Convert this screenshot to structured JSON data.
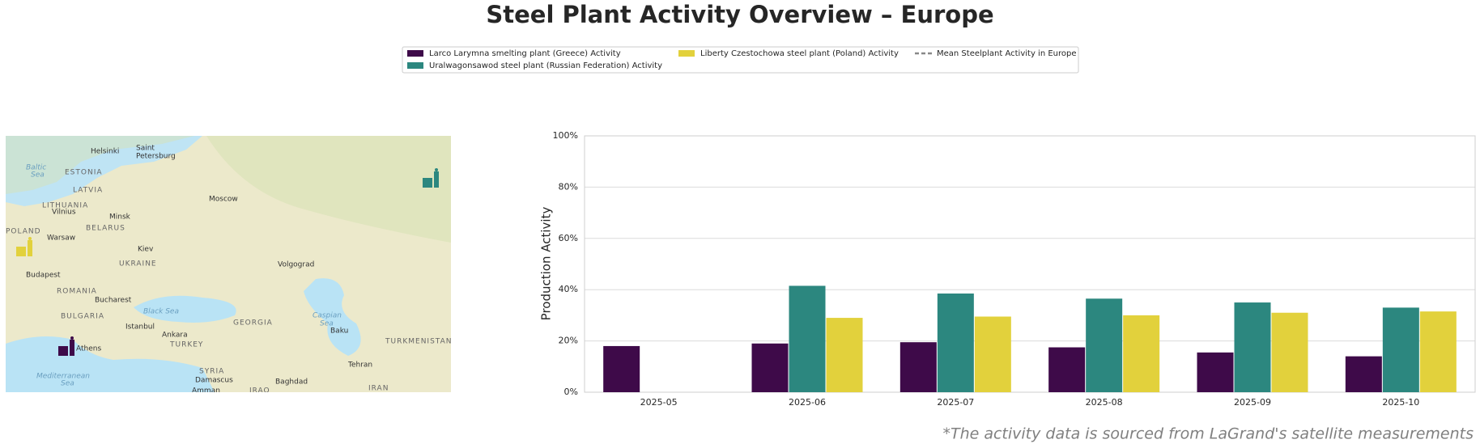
{
  "chart_data": {
    "type": "bar",
    "title": "Steel Plant Activity Overview – Europe",
    "y_label": "Production Activity",
    "footnote": "*The activity data is sourced from LaGrand's satellite measurements",
    "categories": [
      "2025-05",
      "2025-06",
      "2025-07",
      "2025-08",
      "2025-09",
      "2025-10"
    ],
    "series": [
      {
        "name": "Larco Larymna smelting plant (Greece) Activity",
        "color": "#3e0a49",
        "values": [
          18,
          19,
          19.5,
          17.5,
          15.5,
          14
        ]
      },
      {
        "name": "Uralwagonsawod steel plant (Russian Federation) Activity",
        "color": "#2c877f",
        "values": [
          null,
          41.5,
          38.5,
          36.5,
          35,
          33
        ]
      },
      {
        "name": "Liberty Czestochowa steel plant (Poland) Activity",
        "color": "#e2d13c",
        "values": [
          null,
          29,
          29.5,
          30,
          31,
          31.5
        ]
      },
      {
        "name": "Mean Steelplant Activity in Europe",
        "color": "#888888",
        "dashed": true,
        "values": [
          null,
          null,
          null,
          null,
          null,
          null
        ]
      }
    ],
    "ylim": [
      0,
      100
    ],
    "yticks": [
      {
        "value": 0,
        "label": "0%"
      },
      {
        "value": 20,
        "label": "20%"
      },
      {
        "value": 40,
        "label": "40%"
      },
      {
        "value": 60,
        "label": "60%"
      },
      {
        "value": 80,
        "label": "80%"
      },
      {
        "value": 100,
        "label": "100%"
      }
    ],
    "grid": true
  },
  "map": {
    "labels": [
      "Helsinki",
      "Saint",
      "Petersburg",
      "ESTONIA",
      "Baltic",
      "Sea",
      "LATVIA",
      "Moscow",
      "LITHUANIA",
      "Vilnius",
      "Minsk",
      "BELARUS",
      "POLAND",
      "Warsaw",
      "Kiev",
      "UKRAINE",
      "Volgograd",
      "Budapest",
      "ROMANIA",
      "Bucharest",
      "BULGARIA",
      "Black Sea",
      "Istanbul",
      "Ankara",
      "GEORGIA",
      "Caspian",
      "Sea",
      "Baku",
      "TURKMENISTAN",
      "TURKEY",
      "Athens",
      "Tehran",
      "SYRIA",
      "Mediterranean",
      "Sea",
      "Damascus",
      "Baghdad",
      "Amman",
      "IRAQ",
      "IRAN"
    ]
  }
}
